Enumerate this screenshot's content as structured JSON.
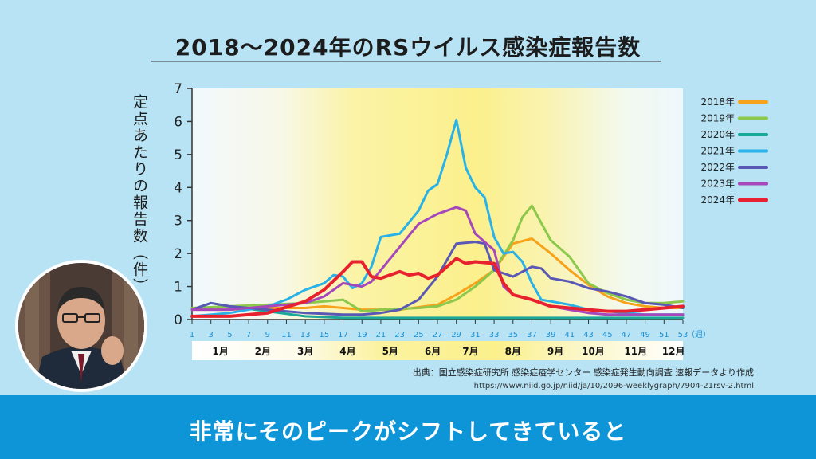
{
  "title": "2018～2024年のRSウイルス感染症報告数",
  "subtitle": "非常にそのピークがシフトしてきていると",
  "source": {
    "line1": "出典：国立感染症研究所 感染症疫学センター 感染症発生動向調査 速報データより作成",
    "line2": "https://www.niid.go.jp/niid/ja/10/2096-weeklygraph/7904-21rsv-2.html"
  },
  "chart_data": {
    "type": "line",
    "ylabel": "定点あたりの報告数（件）",
    "xunit": "（週）",
    "ylim": [
      0,
      7
    ],
    "yticks": [
      0,
      1,
      2,
      3,
      4,
      5,
      6,
      7
    ],
    "xlim": [
      1,
      53
    ],
    "xticks": [
      1,
      3,
      5,
      7,
      9,
      11,
      13,
      15,
      17,
      19,
      21,
      23,
      25,
      27,
      29,
      31,
      33,
      35,
      37,
      39,
      41,
      43,
      45,
      47,
      49,
      51,
      53
    ],
    "months": [
      {
        "label": "1月",
        "week": 4
      },
      {
        "label": "2月",
        "week": 8.5
      },
      {
        "label": "3月",
        "week": 13
      },
      {
        "label": "4月",
        "week": 17.5
      },
      {
        "label": "5月",
        "week": 22
      },
      {
        "label": "6月",
        "week": 26.5
      },
      {
        "label": "7月",
        "week": 30.5
      },
      {
        "label": "8月",
        "week": 35
      },
      {
        "label": "9月",
        "week": 39.5
      },
      {
        "label": "10月",
        "week": 43.5
      },
      {
        "label": "11月",
        "week": 48
      },
      {
        "label": "12月",
        "week": 52
      }
    ],
    "grid": false,
    "legend": "right",
    "series": [
      {
        "name": "2018年",
        "color": "#f7a21b",
        "points": [
          [
            1,
            0.3
          ],
          [
            5,
            0.3
          ],
          [
            9,
            0.35
          ],
          [
            13,
            0.35
          ],
          [
            15,
            0.4
          ],
          [
            17,
            0.35
          ],
          [
            19,
            0.3
          ],
          [
            23,
            0.3
          ],
          [
            27,
            0.45
          ],
          [
            29,
            0.75
          ],
          [
            31,
            1.1
          ],
          [
            33,
            1.5
          ],
          [
            35,
            2.3
          ],
          [
            37,
            2.45
          ],
          [
            39,
            2.0
          ],
          [
            41,
            1.5
          ],
          [
            43,
            1.05
          ],
          [
            45,
            0.7
          ],
          [
            47,
            0.5
          ],
          [
            49,
            0.4
          ],
          [
            51,
            0.35
          ],
          [
            53,
            0.35
          ]
        ]
      },
      {
        "name": "2019年",
        "color": "#8cc84b",
        "points": [
          [
            1,
            0.35
          ],
          [
            5,
            0.4
          ],
          [
            9,
            0.45
          ],
          [
            13,
            0.5
          ],
          [
            15,
            0.55
          ],
          [
            17,
            0.6
          ],
          [
            19,
            0.25
          ],
          [
            21,
            0.3
          ],
          [
            25,
            0.35
          ],
          [
            27,
            0.4
          ],
          [
            29,
            0.6
          ],
          [
            31,
            1.0
          ],
          [
            33,
            1.5
          ],
          [
            35,
            2.4
          ],
          [
            36,
            3.1
          ],
          [
            37,
            3.45
          ],
          [
            39,
            2.4
          ],
          [
            41,
            1.9
          ],
          [
            43,
            1.1
          ],
          [
            45,
            0.8
          ],
          [
            47,
            0.6
          ],
          [
            49,
            0.5
          ],
          [
            51,
            0.5
          ],
          [
            53,
            0.55
          ]
        ]
      },
      {
        "name": "2020年",
        "color": "#1ca899",
        "points": [
          [
            1,
            0.3
          ],
          [
            3,
            0.5
          ],
          [
            5,
            0.4
          ],
          [
            9,
            0.25
          ],
          [
            13,
            0.1
          ],
          [
            17,
            0.05
          ],
          [
            21,
            0.05
          ],
          [
            25,
            0.05
          ],
          [
            29,
            0.05
          ],
          [
            33,
            0.05
          ],
          [
            37,
            0.05
          ],
          [
            41,
            0.05
          ],
          [
            45,
            0.05
          ],
          [
            49,
            0.05
          ],
          [
            53,
            0.05
          ]
        ]
      },
      {
        "name": "2021年",
        "color": "#29b2e8",
        "points": [
          [
            1,
            0.1
          ],
          [
            5,
            0.2
          ],
          [
            9,
            0.4
          ],
          [
            11,
            0.6
          ],
          [
            13,
            0.9
          ],
          [
            15,
            1.1
          ],
          [
            16,
            1.35
          ],
          [
            17,
            1.3
          ],
          [
            18,
            0.95
          ],
          [
            19,
            1.1
          ],
          [
            20,
            1.6
          ],
          [
            21,
            2.5
          ],
          [
            23,
            2.6
          ],
          [
            25,
            3.3
          ],
          [
            26,
            3.9
          ],
          [
            27,
            4.1
          ],
          [
            28,
            5.0
          ],
          [
            29,
            6.05
          ],
          [
            30,
            4.6
          ],
          [
            31,
            4.0
          ],
          [
            32,
            3.7
          ],
          [
            33,
            2.5
          ],
          [
            34,
            2.0
          ],
          [
            35,
            2.05
          ],
          [
            36,
            1.75
          ],
          [
            37,
            1.1
          ],
          [
            38,
            0.6
          ],
          [
            39,
            0.55
          ],
          [
            41,
            0.45
          ],
          [
            43,
            0.3
          ],
          [
            45,
            0.25
          ],
          [
            47,
            0.2
          ],
          [
            49,
            0.15
          ],
          [
            51,
            0.15
          ],
          [
            53,
            0.15
          ]
        ]
      },
      {
        "name": "2022年",
        "color": "#5a58b5",
        "points": [
          [
            1,
            0.3
          ],
          [
            3,
            0.5
          ],
          [
            5,
            0.4
          ],
          [
            9,
            0.3
          ],
          [
            13,
            0.2
          ],
          [
            17,
            0.15
          ],
          [
            19,
            0.15
          ],
          [
            21,
            0.2
          ],
          [
            23,
            0.3
          ],
          [
            25,
            0.6
          ],
          [
            27,
            1.3
          ],
          [
            29,
            2.3
          ],
          [
            31,
            2.35
          ],
          [
            32,
            2.3
          ],
          [
            33,
            1.5
          ],
          [
            35,
            1.3
          ],
          [
            37,
            1.6
          ],
          [
            38,
            1.55
          ],
          [
            39,
            1.25
          ],
          [
            41,
            1.15
          ],
          [
            43,
            0.95
          ],
          [
            45,
            0.85
          ],
          [
            47,
            0.7
          ],
          [
            49,
            0.5
          ],
          [
            51,
            0.45
          ],
          [
            53,
            0.35
          ]
        ]
      },
      {
        "name": "2023年",
        "color": "#a647bb",
        "points": [
          [
            1,
            0.3
          ],
          [
            5,
            0.3
          ],
          [
            9,
            0.4
          ],
          [
            13,
            0.5
          ],
          [
            15,
            0.7
          ],
          [
            17,
            1.1
          ],
          [
            19,
            1.0
          ],
          [
            20,
            1.15
          ],
          [
            21,
            1.5
          ],
          [
            23,
            2.2
          ],
          [
            25,
            2.9
          ],
          [
            27,
            3.2
          ],
          [
            29,
            3.4
          ],
          [
            30,
            3.3
          ],
          [
            31,
            2.6
          ],
          [
            33,
            2.1
          ],
          [
            34,
            1.0
          ],
          [
            35,
            0.75
          ],
          [
            37,
            0.6
          ],
          [
            39,
            0.4
          ],
          [
            41,
            0.3
          ],
          [
            43,
            0.2
          ],
          [
            45,
            0.15
          ],
          [
            49,
            0.15
          ],
          [
            53,
            0.15
          ]
        ]
      },
      {
        "name": "2024年",
        "color": "#e8212e",
        "points": [
          [
            1,
            0.1
          ],
          [
            5,
            0.1
          ],
          [
            9,
            0.2
          ],
          [
            13,
            0.55
          ],
          [
            15,
            0.9
          ],
          [
            17,
            1.45
          ],
          [
            18,
            1.75
          ],
          [
            19,
            1.75
          ],
          [
            20,
            1.3
          ],
          [
            21,
            1.25
          ],
          [
            23,
            1.45
          ],
          [
            24,
            1.35
          ],
          [
            25,
            1.4
          ],
          [
            26,
            1.25
          ],
          [
            27,
            1.35
          ],
          [
            28,
            1.6
          ],
          [
            29,
            1.85
          ],
          [
            30,
            1.7
          ],
          [
            31,
            1.75
          ],
          [
            33,
            1.7
          ],
          [
            34,
            1.1
          ],
          [
            35,
            0.75
          ],
          [
            37,
            0.6
          ],
          [
            39,
            0.4
          ],
          [
            41,
            0.35
          ],
          [
            43,
            0.3
          ],
          [
            45,
            0.25
          ],
          [
            47,
            0.25
          ],
          [
            49,
            0.3
          ],
          [
            51,
            0.35
          ],
          [
            53,
            0.4
          ]
        ]
      }
    ]
  }
}
